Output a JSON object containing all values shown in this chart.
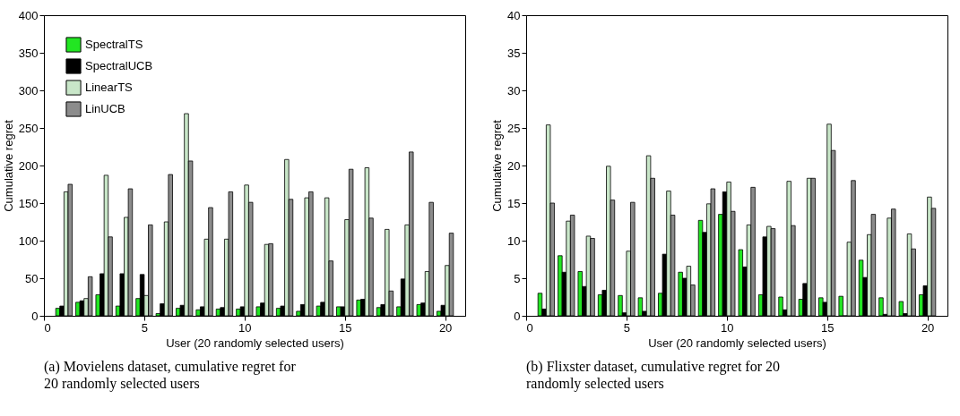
{
  "chart_data": [
    {
      "type": "bar",
      "xlabel": "User (20 randomly selected users)",
      "ylabel": "Cumulative regret",
      "x": [
        1,
        2,
        3,
        4,
        5,
        6,
        7,
        8,
        9,
        10,
        11,
        12,
        13,
        14,
        15,
        16,
        17,
        18,
        19,
        20
      ],
      "xlim": [
        0,
        21
      ],
      "xticks": [
        0,
        5,
        10,
        15,
        20
      ],
      "ylim": [
        0,
        400
      ],
      "yticks": [
        0,
        50,
        100,
        150,
        200,
        250,
        300,
        350,
        400
      ],
      "legend": "top left",
      "grid": false,
      "annotations": [
        "(a) Movielens dataset, cumulative regret for 20 randomly selected users"
      ],
      "series": [
        {
          "name": "SpectralTS",
          "color": "#22e622",
          "values": [
            10,
            18,
            28,
            13,
            23,
            3,
            10,
            8,
            9,
            9,
            12,
            10,
            6,
            13,
            12,
            21,
            11,
            12,
            15,
            6
          ]
        },
        {
          "name": "SpectralUCB",
          "color": "#000000",
          "values": [
            13,
            20,
            56,
            56,
            55,
            16,
            14,
            12,
            11,
            12,
            17,
            13,
            15,
            18,
            12,
            22,
            15,
            49,
            17,
            14
          ]
        },
        {
          "name": "LinearTS",
          "color": "#c8e6c8",
          "values": [
            165,
            23,
            187,
            131,
            27,
            125,
            269,
            102,
            102,
            174,
            95,
            208,
            157,
            157,
            128,
            197,
            115,
            121,
            59,
            67
          ]
        },
        {
          "name": "LinUCB",
          "color": "#8c8c8c",
          "values": [
            175,
            52,
            105,
            169,
            121,
            188,
            206,
            144,
            165,
            151,
            96,
            155,
            165,
            73,
            195,
            130,
            33,
            218,
            151,
            110
          ]
        }
      ]
    },
    {
      "type": "bar",
      "xlabel": "User (20 randomly selected users)",
      "ylabel": "Cumulative regret",
      "x": [
        1,
        2,
        3,
        4,
        5,
        6,
        7,
        8,
        9,
        10,
        11,
        12,
        13,
        14,
        15,
        16,
        17,
        18,
        19,
        20
      ],
      "xlim": [
        0,
        21
      ],
      "xticks": [
        0,
        5,
        10,
        15,
        20
      ],
      "ylim": [
        0,
        40
      ],
      "yticks": [
        0,
        5,
        10,
        15,
        20,
        25,
        30,
        35,
        40
      ],
      "legend": "top left",
      "grid": false,
      "annotations": [
        "(b) Flixster dataset, cumulative regret for 20 randomly selected users"
      ],
      "series": [
        {
          "name": "SpectralTS",
          "color": "#22e622",
          "values": [
            3,
            8,
            5.9,
            2.8,
            2.7,
            2.4,
            3,
            5.8,
            12.7,
            13.5,
            8.8,
            2.8,
            2.5,
            2.2,
            2.4,
            2.6,
            7.4,
            2.4,
            1.9,
            2.8
          ]
        },
        {
          "name": "SpectralUCB",
          "color": "#000000",
          "values": [
            0.9,
            5.8,
            3.9,
            3.4,
            0.4,
            0.6,
            8.2,
            5,
            11.1,
            16.5,
            6.5,
            10.5,
            0.8,
            4.3,
            1.8,
            0,
            5.1,
            0.2,
            0.3,
            4
          ]
        },
        {
          "name": "LinearTS",
          "color": "#c8e6c8",
          "values": [
            25.4,
            12.6,
            10.6,
            19.9,
            8.6,
            21.3,
            16.6,
            6.6,
            14.9,
            17.8,
            12.1,
            11.9,
            17.9,
            18.3,
            25.5,
            9.8,
            10.8,
            13,
            10.9,
            15.8
          ]
        },
        {
          "name": "LinUCB",
          "color": "#8c8c8c",
          "values": [
            15,
            13.4,
            10.3,
            15.4,
            15.1,
            18.3,
            13.4,
            4.1,
            16.9,
            13.9,
            17.1,
            11.6,
            12,
            18.3,
            22,
            18,
            13.5,
            14.2,
            8.9,
            14.3
          ]
        }
      ]
    }
  ]
}
